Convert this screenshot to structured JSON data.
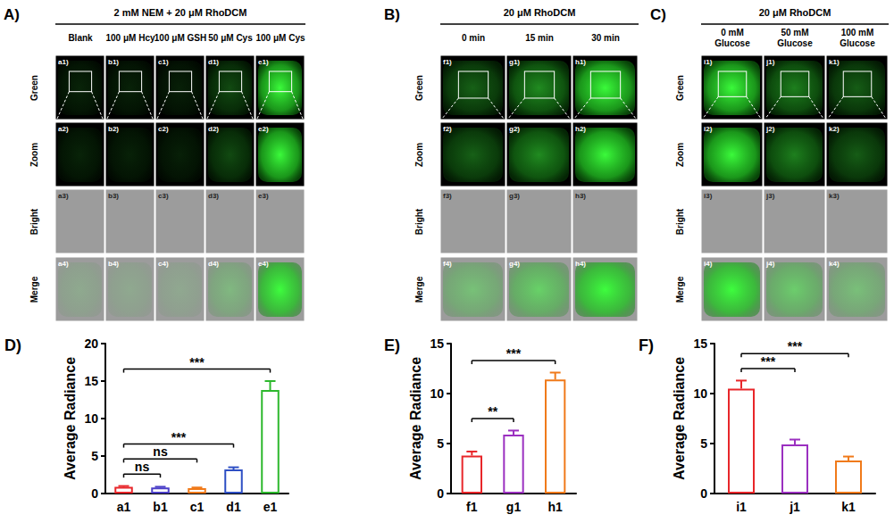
{
  "figure": {
    "image_panels": [
      {
        "letter": "A)",
        "title": "2 mM NEM + 20 μM RhoDCM",
        "columns": [
          "Blank",
          "100 μM Hcy",
          "100 μM GSH",
          "50 μM Cys",
          "100 μM Cys"
        ],
        "cells": [
          [
            "a1)",
            "b1)",
            "c1)",
            "d1)",
            "e1)"
          ],
          [
            "a2)",
            "b2)",
            "c2)",
            "d2)",
            "e2)"
          ],
          [
            "a3)",
            "b3)",
            "c3)",
            "d3)",
            "e3)"
          ],
          [
            "a4)",
            "b4)",
            "c4)",
            "d4)",
            "e4)"
          ]
        ]
      },
      {
        "letter": "B)",
        "title": "20 μM RhoDCM",
        "columns": [
          "0 min",
          "15 min",
          "30 min"
        ],
        "cells": [
          [
            "f1)",
            "g1)",
            "h1)"
          ],
          [
            "f2)",
            "g2)",
            "h2)"
          ],
          [
            "f3)",
            "g3)",
            "h3)"
          ],
          [
            "f4)",
            "g4)",
            "h4)"
          ]
        ]
      },
      {
        "letter": "C)",
        "title": "20 μM RhoDCM",
        "columns": [
          "0 mM\nGlucose",
          "50 mM\nGlucose",
          "100 mM\nGlucose"
        ],
        "cells": [
          [
            "i1)",
            "j1)",
            "k1)"
          ],
          [
            "i2)",
            "j2)",
            "k2)"
          ],
          [
            "i3)",
            "j3)",
            "k3)"
          ],
          [
            "i4)",
            "j4)",
            "k4)"
          ]
        ]
      }
    ],
    "row_labels": [
      "Green",
      "Zoom",
      "Bright",
      "Merge"
    ]
  },
  "chart_data": [
    {
      "type": "bar",
      "letter": "D)",
      "y_label": "Average Radiance",
      "categories": [
        "a1",
        "b1",
        "c1",
        "d1",
        "e1"
      ],
      "values": [
        0.9,
        0.8,
        0.7,
        3.2,
        13.8
      ],
      "errors": [
        0.1,
        0.1,
        0.1,
        0.3,
        1.2
      ],
      "colors": [
        "#e8262a",
        "#4b3fc8",
        "#f07a1a",
        "#2e4fc4",
        "#2db82d"
      ],
      "ylim": [
        0,
        20
      ],
      "yticks": [
        0,
        5,
        10,
        15,
        20
      ],
      "significance": [
        {
          "from": "a1",
          "to": "b1",
          "label": "ns"
        },
        {
          "from": "a1",
          "to": "c1",
          "label": "ns"
        },
        {
          "from": "a1",
          "to": "d1",
          "label": "***"
        },
        {
          "from": "a1",
          "to": "e1",
          "label": "***"
        }
      ]
    },
    {
      "type": "bar",
      "letter": "E)",
      "y_label": "Average Radiance",
      "categories": [
        "f1",
        "g1",
        "h1"
      ],
      "values": [
        3.8,
        5.9,
        11.4
      ],
      "errors": [
        0.4,
        0.4,
        0.7
      ],
      "colors": [
        "#e8262a",
        "#9b30c0",
        "#f07a1a"
      ],
      "ylim": [
        0,
        15
      ],
      "yticks": [
        0,
        5,
        10,
        15
      ],
      "significance": [
        {
          "from": "f1",
          "to": "g1",
          "label": "**"
        },
        {
          "from": "f1",
          "to": "h1",
          "label": "***"
        }
      ]
    },
    {
      "type": "bar",
      "letter": "F)",
      "y_label": "Average Radiance",
      "categories": [
        "i1",
        "j1",
        "k1"
      ],
      "values": [
        10.5,
        4.9,
        3.3
      ],
      "errors": [
        0.8,
        0.5,
        0.4
      ],
      "colors": [
        "#e8262a",
        "#9b30c0",
        "#f07a1a"
      ],
      "ylim": [
        0,
        15
      ],
      "yticks": [
        0,
        5,
        10,
        15
      ],
      "significance": [
        {
          "from": "i1",
          "to": "j1",
          "label": "***"
        },
        {
          "from": "i1",
          "to": "k1",
          "label": "***"
        }
      ]
    }
  ]
}
